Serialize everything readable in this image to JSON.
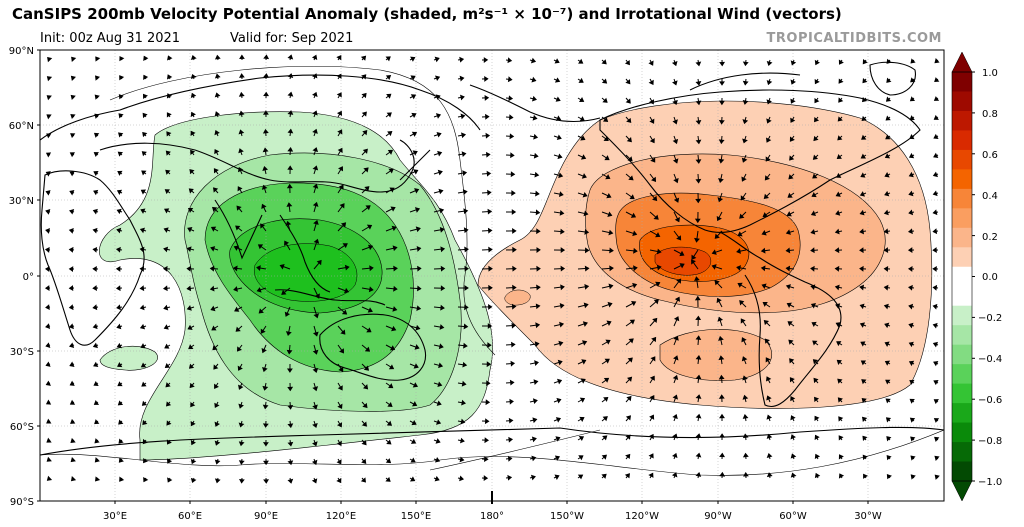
{
  "header": {
    "title": "CanSIPS 200mb Velocity Potential Anomaly (shaded, m²s⁻¹ × 10⁻⁷) and Irrotational Wind (vectors)",
    "init": "Init: 00z Aug 31 2021",
    "valid": "Valid for: Sep 2021",
    "credit": "TROPICALTIDBITS.COM"
  },
  "map": {
    "lat_labels": [
      "90°N",
      "60°N",
      "30°N",
      "0°",
      "30°S",
      "60°S",
      "90°S"
    ],
    "lon_labels": [
      "30°E",
      "60°E",
      "90°E",
      "120°E",
      "150°E",
      "180°",
      "150°W",
      "120°W",
      "90°W",
      "60°W",
      "30°W"
    ]
  },
  "colorbar": {
    "labels": [
      "1.0",
      "0.8",
      "0.6",
      "0.4",
      "0.2",
      "0.0",
      "−0.2",
      "−0.4",
      "−0.6",
      "−0.8",
      "−1.0"
    ],
    "colors": [
      "#7f0000",
      "#9e0a00",
      "#bd1800",
      "#d92a00",
      "#e84800",
      "#f46400",
      "#f78538",
      "#fa9e60",
      "#fbb58a",
      "#fdd0b4",
      "#ffffff",
      "#ffffff",
      "#c8f0c8",
      "#a6e6a6",
      "#82dc82",
      "#5ad25a",
      "#34c434",
      "#1aa81a",
      "#0a8a0a",
      "#066a06",
      "#034a03"
    ],
    "positive_color": "#f46400",
    "negative_color": "#1aa81a"
  }
}
